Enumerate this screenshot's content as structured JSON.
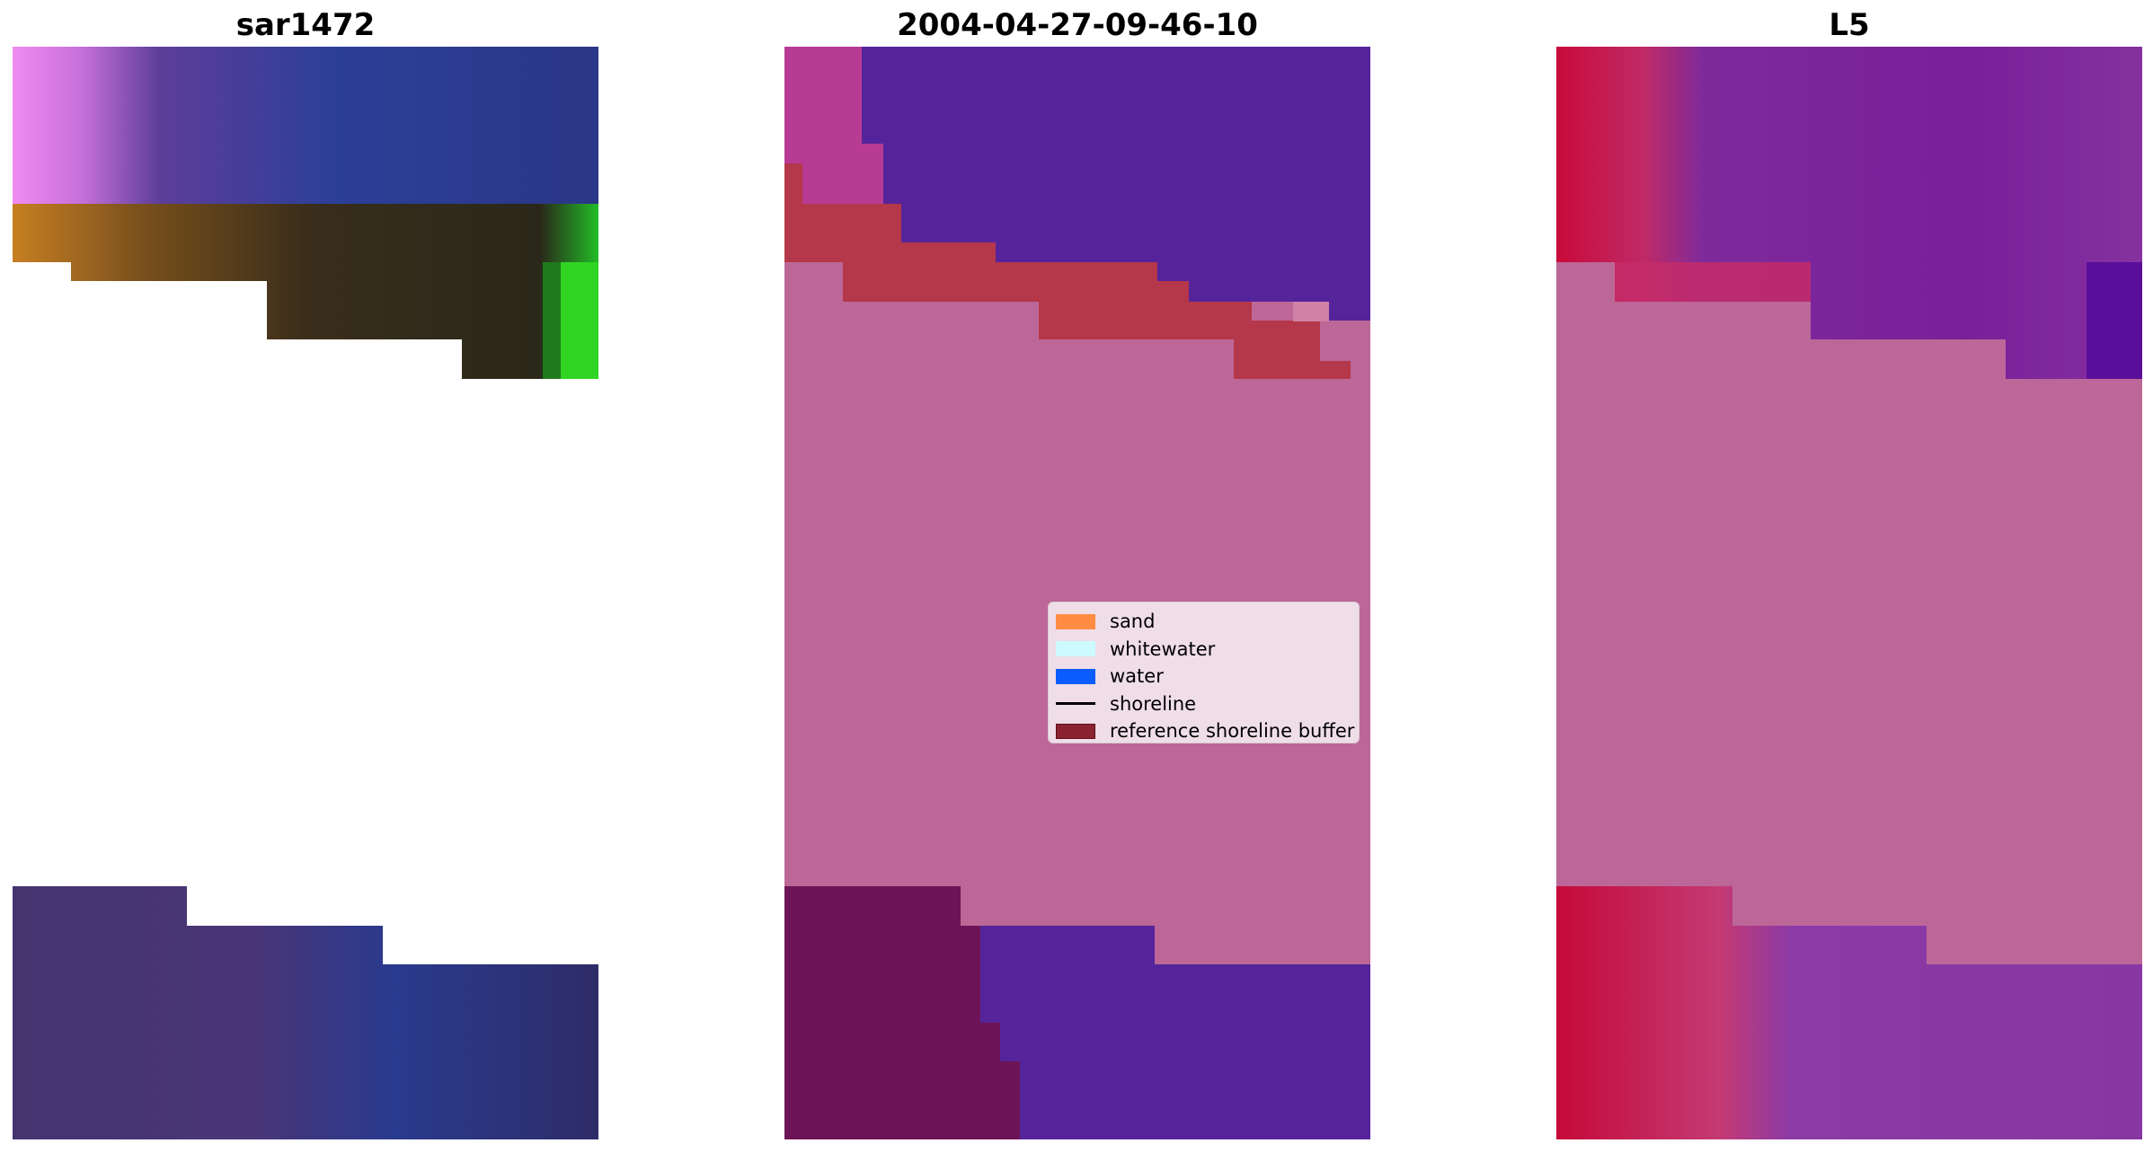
{
  "panels": [
    {
      "title": "sar1472"
    },
    {
      "title": "2004-04-27-09-46-10"
    },
    {
      "title": "L5"
    }
  ],
  "legend": {
    "items": [
      {
        "label": "sand",
        "color": "#ff8c42"
      },
      {
        "label": "whitewater",
        "color": "#ccfaff"
      },
      {
        "label": "water",
        "color": "#0a5cff"
      },
      {
        "label": "shoreline",
        "color": "#000000"
      },
      {
        "label": "reference shoreline buffer",
        "color": "#8b2232"
      }
    ]
  },
  "colors": {
    "sar_top": "#2e3b8e",
    "sar_pink": "#f488f0",
    "sar_orange": "#b87812",
    "sar_olive": "#3a2c06",
    "sar_green": "#2ecc1e",
    "sar_bottom": "#3a2f6e",
    "class_pink": "#bc6797",
    "class_purple": "#55249a",
    "class_magenta": "#b73b93",
    "class_red": "#b5374a",
    "class_darkmagenta": "#6c1457",
    "l5_red": "#c00b3b",
    "l5_purple": "#7a2798"
  }
}
